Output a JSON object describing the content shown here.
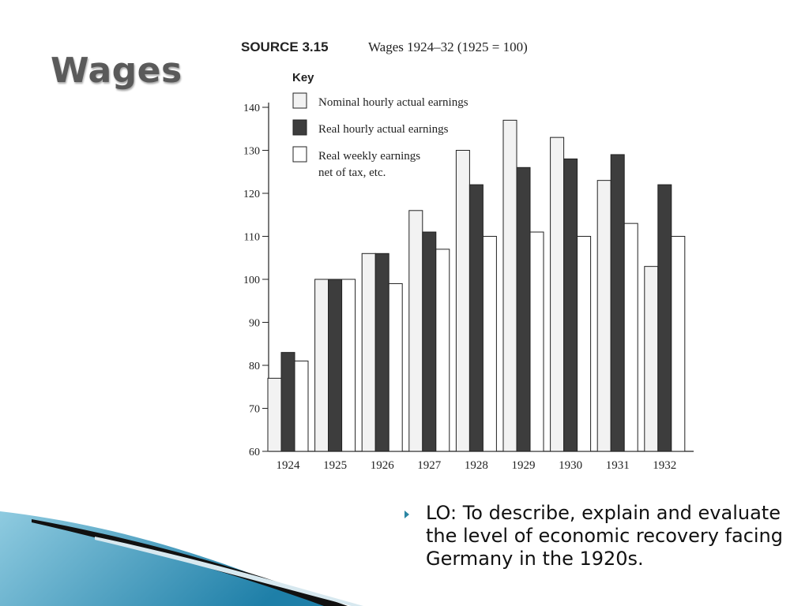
{
  "slide": {
    "title": "Wages",
    "lo_text": "LO: To describe, explain and evaluate the level of economic recovery facing Germany in the 1920s."
  },
  "chart_data": {
    "type": "bar",
    "source_label": "SOURCE 3.15",
    "title": "Wages 1924–32 (1925 = 100)",
    "key_title": "Key",
    "categories": [
      "1924",
      "1925",
      "1926",
      "1927",
      "1928",
      "1929",
      "1930",
      "1931",
      "1932"
    ],
    "series": [
      {
        "name": "Nominal hourly actual earnings",
        "color": "#f2f2f2",
        "values": [
          77,
          100,
          106,
          116,
          130,
          137,
          133,
          123,
          103
        ]
      },
      {
        "name": "Real hourly actual earnings",
        "color": "#3d3d3d",
        "values": [
          83,
          100,
          106,
          111,
          122,
          126,
          128,
          129,
          122
        ]
      },
      {
        "name": "Real weekly earnings net of tax, etc.",
        "color": "#ffffff",
        "values": [
          81,
          100,
          99,
          107,
          110,
          111,
          110,
          113,
          110
        ]
      }
    ],
    "legend_lines": [
      [
        "Nominal hourly actual earnings"
      ],
      [
        "Real hourly actual earnings"
      ],
      [
        "Real weekly earnings",
        "net of tax, etc."
      ]
    ],
    "yticks": [
      60,
      70,
      80,
      90,
      100,
      110,
      120,
      130,
      140
    ],
    "ylim": [
      60,
      140
    ],
    "xlabel": "",
    "ylabel": "",
    "grid": false,
    "legend_position": "top-left"
  },
  "colors": {
    "accent_teal": "#2b86a3",
    "swoosh_light": "#8fcbe0",
    "swoosh_dark": "#1e7fa8"
  }
}
